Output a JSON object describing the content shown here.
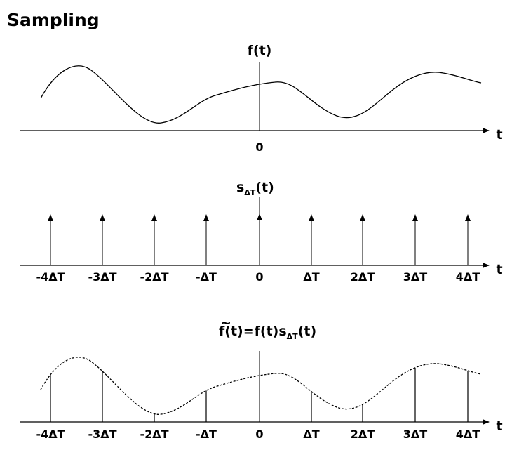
{
  "title": "Sampling",
  "panels": {
    "signal": {
      "label": "f(t)",
      "axis_label": "t",
      "origin_label": "0"
    },
    "impulse_train": {
      "label_main": "s",
      "label_sub": "ΔT",
      "label_tail": "(t)",
      "axis_label": "t"
    },
    "sampled": {
      "label_main": "f(t)=f(t)s",
      "label_sub": "ΔT",
      "label_tail": "(t)",
      "tilde": "~",
      "axis_label": "t"
    }
  },
  "tick_labels": [
    "-4ΔT",
    "-3ΔT",
    "-2ΔT",
    "-ΔT",
    "0",
    "ΔT",
    "2ΔT",
    "3ΔT",
    "4ΔT"
  ],
  "colors": {
    "stroke": "#000000",
    "background": "#ffffff"
  }
}
